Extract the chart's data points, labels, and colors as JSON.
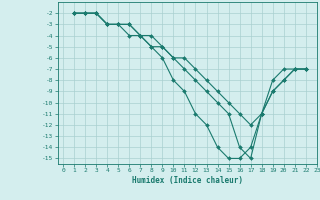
{
  "xlabel": "Humidex (Indice chaleur)",
  "bg_color": "#d4eeee",
  "grid_color": "#aad0d0",
  "line_color": "#1a7a6e",
  "xlim": [
    -0.5,
    23
  ],
  "ylim": [
    -15.5,
    -1
  ],
  "yticks": [
    -15,
    -14,
    -13,
    -12,
    -11,
    -10,
    -9,
    -8,
    -7,
    -6,
    -5,
    -4,
    -3,
    -2
  ],
  "xticks": [
    0,
    1,
    2,
    3,
    4,
    5,
    6,
    7,
    8,
    9,
    10,
    11,
    12,
    13,
    14,
    15,
    16,
    17,
    18,
    19,
    20,
    21,
    22,
    23
  ],
  "line1_x": [
    1,
    2,
    3,
    4,
    5,
    6,
    7,
    8,
    9,
    10,
    11,
    12,
    13,
    14,
    15,
    16,
    17,
    18,
    19,
    20,
    21,
    22
  ],
  "line1_y": [
    -2,
    -2,
    -2,
    -3,
    -3,
    -3,
    -4,
    -5,
    -6,
    -8,
    -9,
    -11,
    -12,
    -14,
    -15,
    -15,
    -14,
    -11,
    -9,
    -8,
    -7,
    -7
  ],
  "line2_x": [
    1,
    2,
    3,
    4,
    5,
    6,
    7,
    8,
    9,
    10,
    11,
    12,
    13,
    14,
    15,
    16,
    17,
    18,
    19,
    20,
    21,
    22
  ],
  "line2_y": [
    -2,
    -2,
    -2,
    -3,
    -3,
    -3,
    -4,
    -4,
    -5,
    -6,
    -6,
    -7,
    -8,
    -9,
    -10,
    -11,
    -12,
    -11,
    -9,
    -8,
    -7,
    -7
  ],
  "line3_x": [
    1,
    2,
    3,
    4,
    5,
    6,
    7,
    8,
    9,
    10,
    11,
    12,
    13,
    14,
    15,
    16,
    17,
    18,
    19,
    20,
    21,
    22
  ],
  "line3_y": [
    -2,
    -2,
    -2,
    -3,
    -3,
    -4,
    -4,
    -5,
    -5,
    -6,
    -7,
    -8,
    -9,
    -10,
    -11,
    -14,
    -15,
    -11,
    -8,
    -7,
    -7,
    -7
  ],
  "tick_fontsize": 4.5,
  "xlabel_fontsize": 5.5
}
